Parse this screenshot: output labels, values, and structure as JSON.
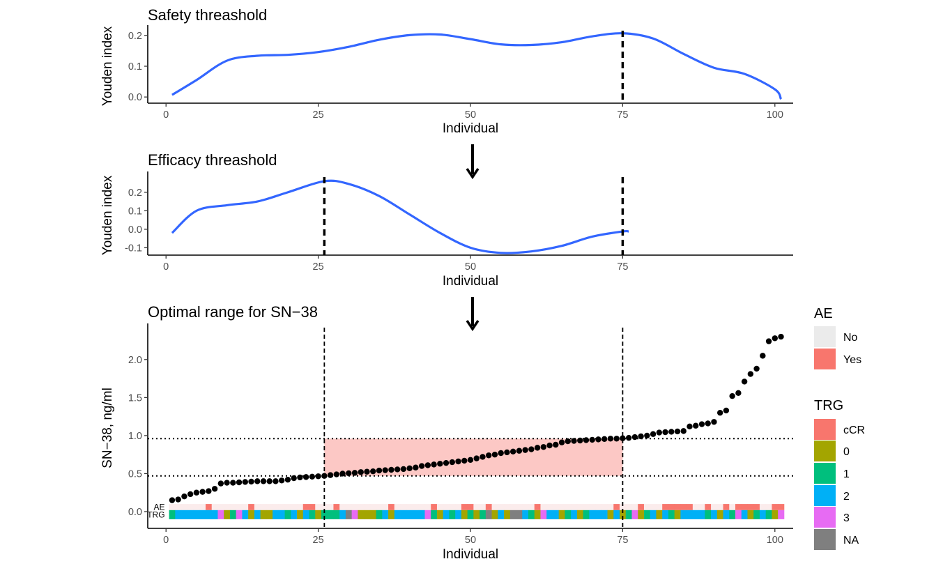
{
  "chart_data": [
    {
      "type": "line",
      "title": "Safety threashold",
      "xlabel": "Individual",
      "ylabel": "Youden index",
      "xlim": [
        -3,
        103
      ],
      "ylim": [
        -0.02,
        0.22
      ],
      "xticks": [
        "0",
        "25",
        "50",
        "75",
        "100"
      ],
      "yticks": [
        "0.0",
        "0.1",
        "0.2"
      ],
      "vlines": [
        75
      ],
      "series": [
        {
          "color": "#3366FF",
          "x": [
            1,
            5,
            10,
            15,
            20,
            25,
            30,
            35,
            40,
            45,
            50,
            55,
            60,
            65,
            70,
            75,
            80,
            85,
            90,
            95,
            100,
            101
          ],
          "y": [
            0.007,
            0.055,
            0.118,
            0.134,
            0.137,
            0.146,
            0.163,
            0.186,
            0.201,
            0.203,
            0.188,
            0.171,
            0.169,
            0.178,
            0.197,
            0.207,
            0.19,
            0.14,
            0.095,
            0.075,
            0.025,
            -0.007
          ]
        }
      ]
    },
    {
      "type": "line",
      "title": "Efficacy threashold",
      "xlabel": "Individual",
      "ylabel": "Youden index",
      "xlim": [
        -3,
        103
      ],
      "ylim": [
        -0.14,
        0.29
      ],
      "xticks": [
        "0",
        "25",
        "50",
        "75"
      ],
      "yticks": [
        "-0.1",
        "0.0",
        "0.1",
        "0.2"
      ],
      "vlines": [
        26,
        75
      ],
      "series": [
        {
          "color": "#3366FF",
          "x": [
            1,
            5,
            10,
            15,
            20,
            26,
            30,
            35,
            40,
            45,
            50,
            55,
            60,
            65,
            70,
            75,
            76
          ],
          "y": [
            -0.02,
            0.1,
            0.13,
            0.15,
            0.2,
            0.26,
            0.245,
            0.18,
            0.08,
            -0.02,
            -0.1,
            -0.128,
            -0.12,
            -0.09,
            -0.04,
            -0.012,
            -0.012
          ]
        }
      ]
    },
    {
      "type": "scatter",
      "title": "Optimal range for SN−38",
      "xlabel": "Individual",
      "ylabel": "SN−38, ng/ml",
      "xlim": [
        -3,
        103
      ],
      "ylim": [
        -0.22,
        2.42
      ],
      "xticks": [
        "0",
        "25",
        "50",
        "75",
        "100"
      ],
      "yticks": [
        "0.0",
        "0.5",
        "1.0",
        "1.5",
        "2.0"
      ],
      "vlines": [
        26,
        75
      ],
      "hlines": [
        0.47,
        0.96
      ],
      "shaded_range": {
        "x": [
          26,
          75
        ],
        "y": [
          0.47,
          0.96
        ],
        "color": "#F8766D"
      },
      "strip_labels": [
        "AE",
        "TRG"
      ],
      "x": [
        1,
        2,
        3,
        4,
        5,
        6,
        7,
        8,
        9,
        10,
        11,
        12,
        13,
        14,
        15,
        16,
        17,
        18,
        19,
        20,
        21,
        22,
        23,
        24,
        25,
        26,
        27,
        28,
        29,
        30,
        31,
        32,
        33,
        34,
        35,
        36,
        37,
        38,
        39,
        40,
        41,
        42,
        43,
        44,
        45,
        46,
        47,
        48,
        49,
        50,
        51,
        52,
        53,
        54,
        55,
        56,
        57,
        58,
        59,
        60,
        61,
        62,
        63,
        64,
        65,
        66,
        67,
        68,
        69,
        70,
        71,
        72,
        73,
        74,
        75,
        76,
        77,
        78,
        79,
        80,
        81,
        82,
        83,
        84,
        85,
        86,
        87,
        88,
        89,
        90,
        91,
        92,
        93,
        94,
        95,
        96,
        97,
        98,
        99,
        100,
        101
      ],
      "y": [
        0.15,
        0.16,
        0.2,
        0.23,
        0.25,
        0.26,
        0.27,
        0.3,
        0.37,
        0.38,
        0.38,
        0.385,
        0.39,
        0.395,
        0.4,
        0.4,
        0.4,
        0.4,
        0.41,
        0.42,
        0.44,
        0.45,
        0.455,
        0.46,
        0.465,
        0.47,
        0.48,
        0.49,
        0.5,
        0.505,
        0.51,
        0.52,
        0.525,
        0.53,
        0.54,
        0.545,
        0.55,
        0.555,
        0.56,
        0.57,
        0.58,
        0.6,
        0.61,
        0.62,
        0.63,
        0.64,
        0.65,
        0.66,
        0.67,
        0.68,
        0.7,
        0.72,
        0.74,
        0.75,
        0.77,
        0.78,
        0.79,
        0.8,
        0.81,
        0.82,
        0.84,
        0.85,
        0.87,
        0.88,
        0.91,
        0.925,
        0.93,
        0.935,
        0.94,
        0.945,
        0.95,
        0.955,
        0.96,
        0.96,
        0.965,
        0.97,
        0.98,
        0.99,
        1.0,
        1.02,
        1.04,
        1.045,
        1.05,
        1.055,
        1.06,
        1.12,
        1.13,
        1.15,
        1.16,
        1.18,
        1.3,
        1.33,
        1.52,
        1.56,
        1.71,
        1.81,
        1.88,
        2.05,
        2.24,
        2.28,
        2.3
      ],
      "ae": [
        0,
        0,
        0,
        0,
        0,
        0,
        1,
        0,
        0,
        0,
        0,
        0,
        0,
        1,
        0,
        0,
        0,
        0,
        0,
        0,
        0,
        0,
        1,
        1,
        0,
        0,
        0,
        1,
        0,
        0,
        0,
        0,
        0,
        0,
        0,
        0,
        1,
        0,
        0,
        0,
        0,
        0,
        0,
        1,
        0,
        0,
        0,
        0,
        1,
        1,
        0,
        0,
        1,
        0,
        0,
        0,
        0,
        0,
        0,
        0,
        1,
        0,
        0,
        0,
        0,
        0,
        0,
        0,
        0,
        0,
        0,
        0,
        0,
        1,
        0,
        0,
        0,
        1,
        0,
        0,
        0,
        1,
        1,
        1,
        1,
        1,
        0,
        0,
        1,
        0,
        0,
        1,
        0,
        1,
        1,
        1,
        1,
        0,
        0,
        1,
        1
      ],
      "trg": [
        "1",
        "2",
        "2",
        "2",
        "2",
        "2",
        "2",
        "2",
        "3",
        "0",
        "1",
        "3",
        "2",
        "0",
        "2",
        "0",
        "0",
        "2",
        "2",
        "1",
        "2",
        "0",
        "2",
        "1",
        "0",
        "1",
        "1",
        "1",
        "2",
        "NA",
        "3",
        "0",
        "0",
        "0",
        "1",
        "2",
        "0",
        "2",
        "2",
        "2",
        "2",
        "2",
        "3",
        "1",
        "0",
        "2",
        "1",
        "2",
        "0",
        "1",
        "0",
        "1",
        "NA",
        "0",
        "2",
        "0",
        "NA",
        "NA",
        "2",
        "1",
        "0",
        "3",
        "2",
        "2",
        "0",
        "1",
        "2",
        "0",
        "1",
        "2",
        "2",
        "2",
        "0",
        "2",
        "0",
        "1",
        "3",
        "0",
        "1",
        "2",
        "0",
        "2",
        "1",
        "0",
        "2",
        "2",
        "2",
        "2",
        "1",
        "2",
        "0",
        "2",
        "1",
        "3",
        "2",
        "0",
        "1",
        "2",
        "1",
        "0",
        "3"
      ]
    }
  ],
  "legend": {
    "ae": {
      "title": "AE",
      "items": [
        {
          "label": "No",
          "color": "#EBEBEB"
        },
        {
          "label": "Yes",
          "color": "#F8766D"
        }
      ]
    },
    "trg": {
      "title": "TRG",
      "items": [
        {
          "label": "cCR",
          "color": "#F8766D"
        },
        {
          "label": "0",
          "color": "#A3A500"
        },
        {
          "label": "1",
          "color": "#00BF7D"
        },
        {
          "label": "2",
          "color": "#00B0F6"
        },
        {
          "label": "3",
          "color": "#E76BF3"
        },
        {
          "label": "NA",
          "color": "#7F7F7F"
        }
      ]
    }
  }
}
